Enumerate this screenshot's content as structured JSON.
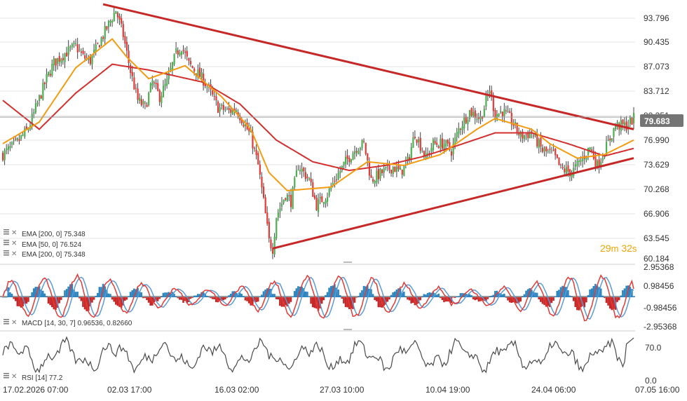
{
  "colors": {
    "candle_up": "#4caf50",
    "candle_down": "#e53935",
    "wick": "#424242",
    "ema_fast": "#f39c12",
    "ema_slow": "#d32f2f",
    "trendline": "#c62828",
    "macd_line": "#e53935",
    "signal_line": "#5b9bd5",
    "hist_up": "#2e86c1",
    "hist_down": "#c62828",
    "rsi": "#4a4a4a",
    "price_tag": "#757575",
    "timer": "#f0a500",
    "grid": "#e6e6e6"
  },
  "icons": [
    "legend-settings-icon",
    "legend-close-icon"
  ],
  "price_axis": {
    "ticks": [
      "93.796",
      "90.435",
      "87.073",
      "83.712",
      "80.351",
      "76.990",
      "73.629",
      "70.268",
      "66.906",
      "63.545",
      "60.184"
    ],
    "current_price": "79.683"
  },
  "timer": {
    "minutes": "29",
    "m": "m",
    "seconds": "32",
    "s": "s"
  },
  "legends": {
    "price": [
      "EMA [200, 0] 75.348",
      "EMA [50, 0] 76.524",
      "EMA [200, 0] 75.348"
    ],
    "macd": "MACD [14, 30, 7] 0.96536, 0.82660",
    "rsi": "RSI [14] 77.2"
  },
  "macd_axis": {
    "ticks": [
      "2.95368",
      "0.98456",
      "-0.98456",
      "-2.95368"
    ]
  },
  "rsi_axis": {
    "ticks": [
      "70.0",
      "0.0"
    ]
  },
  "time_axis": {
    "ticks": [
      "17.02.2026 07:00",
      "02.03 17:00",
      "16.03 02:00",
      "27.03 10:00",
      "10.04 19:00",
      "24.04 06:00",
      "07.05 16:00"
    ]
  },
  "chart_data": {
    "type": "candlestick",
    "instrument_timeframe": "1h",
    "y_range": [
      60.184,
      95.5
    ],
    "price_anchors": [
      [
        0,
        74.5
      ],
      [
        8,
        76.2
      ],
      [
        14,
        78.1
      ],
      [
        24,
        85.0
      ],
      [
        28,
        87.2
      ],
      [
        34,
        88.5
      ],
      [
        40,
        89.5
      ],
      [
        44,
        88.0
      ],
      [
        48,
        87.5
      ],
      [
        54,
        90.5
      ],
      [
        62,
        94.5
      ],
      [
        66,
        91.0
      ],
      [
        70,
        86.0
      ],
      [
        74,
        82.0
      ],
      [
        78,
        81.0
      ],
      [
        82,
        84.5
      ],
      [
        86,
        82.5
      ],
      [
        90,
        84.5
      ],
      [
        95,
        88.5
      ],
      [
        98,
        89.5
      ],
      [
        102,
        87.0
      ],
      [
        106,
        86.0
      ],
      [
        110,
        84.8
      ],
      [
        114,
        83.0
      ],
      [
        118,
        81.0
      ],
      [
        124,
        80.5
      ],
      [
        128,
        80.8
      ],
      [
        132,
        79.0
      ],
      [
        136,
        77.0
      ],
      [
        140,
        73.0
      ],
      [
        143,
        68.0
      ],
      [
        146,
        62.5
      ],
      [
        148,
        61.5
      ],
      [
        150,
        66.0
      ],
      [
        155,
        69.0
      ],
      [
        158,
        68.0
      ],
      [
        162,
        73.0
      ],
      [
        168,
        71.0
      ],
      [
        172,
        67.5
      ],
      [
        178,
        69.0
      ],
      [
        182,
        71.0
      ],
      [
        188,
        73.5
      ],
      [
        194,
        75.5
      ],
      [
        198,
        76.0
      ],
      [
        202,
        71.0
      ],
      [
        208,
        72.0
      ],
      [
        214,
        72.8
      ],
      [
        218,
        72.0
      ],
      [
        222,
        73.5
      ],
      [
        226,
        77.5
      ],
      [
        232,
        74.0
      ],
      [
        236,
        76.0
      ],
      [
        242,
        76.0
      ],
      [
        246,
        75.0
      ],
      [
        250,
        78.0
      ],
      [
        256,
        80.5
      ],
      [
        262,
        79.5
      ],
      [
        267,
        83.5
      ],
      [
        270,
        80.0
      ],
      [
        274,
        80.5
      ],
      [
        278,
        79.5
      ],
      [
        284,
        77.0
      ],
      [
        290,
        77.5
      ],
      [
        296,
        75.0
      ],
      [
        302,
        74.5
      ],
      [
        306,
        72.5
      ],
      [
        312,
        72.0
      ],
      [
        318,
        74.0
      ],
      [
        322,
        75.5
      ],
      [
        326,
        73.0
      ],
      [
        330,
        75.0
      ],
      [
        336,
        78.5
      ],
      [
        342,
        78.5
      ],
      [
        346,
        79.5
      ]
    ],
    "ema50_anchors": [
      [
        0,
        76.0
      ],
      [
        20,
        79.0
      ],
      [
        40,
        86.5
      ],
      [
        60,
        90.5
      ],
      [
        68,
        88.0
      ],
      [
        80,
        85.0
      ],
      [
        100,
        86.8
      ],
      [
        120,
        82.5
      ],
      [
        136,
        78.0
      ],
      [
        146,
        72.0
      ],
      [
        156,
        69.5
      ],
      [
        180,
        70.0
      ],
      [
        200,
        73.5
      ],
      [
        220,
        73.0
      ],
      [
        240,
        74.5
      ],
      [
        260,
        78.0
      ],
      [
        270,
        79.5
      ],
      [
        290,
        78.0
      ],
      [
        300,
        76.0
      ],
      [
        315,
        74.0
      ],
      [
        330,
        74.5
      ],
      [
        346,
        76.5
      ]
    ],
    "ema200_anchors": [
      [
        0,
        82.0
      ],
      [
        20,
        78.0
      ],
      [
        40,
        83.0
      ],
      [
        60,
        87.0
      ],
      [
        80,
        86.2
      ],
      [
        110,
        84.5
      ],
      [
        130,
        81.5
      ],
      [
        150,
        76.5
      ],
      [
        170,
        73.5
      ],
      [
        190,
        72.3
      ],
      [
        210,
        73.0
      ],
      [
        230,
        74.2
      ],
      [
        250,
        75.8
      ],
      [
        270,
        77.5
      ],
      [
        290,
        77.5
      ],
      [
        310,
        76.0
      ],
      [
        330,
        74.3
      ],
      [
        346,
        75.35
      ]
    ],
    "trendlines": [
      {
        "name": "upper",
        "from": [
          55,
          95.3
        ],
        "to": [
          346,
          78.0
        ]
      },
      {
        "name": "lower",
        "from": [
          148,
          61.5
        ],
        "to": [
          346,
          74.0
        ]
      }
    ],
    "macd": {
      "range": [
        -3.5,
        3.5
      ],
      "params": "14, 30, 7",
      "last_macd": 0.96536,
      "last_signal": 0.8266,
      "cycle_length": 18
    },
    "rsi": {
      "range": [
        0,
        100
      ],
      "period": 14,
      "last": 77.2
    }
  }
}
